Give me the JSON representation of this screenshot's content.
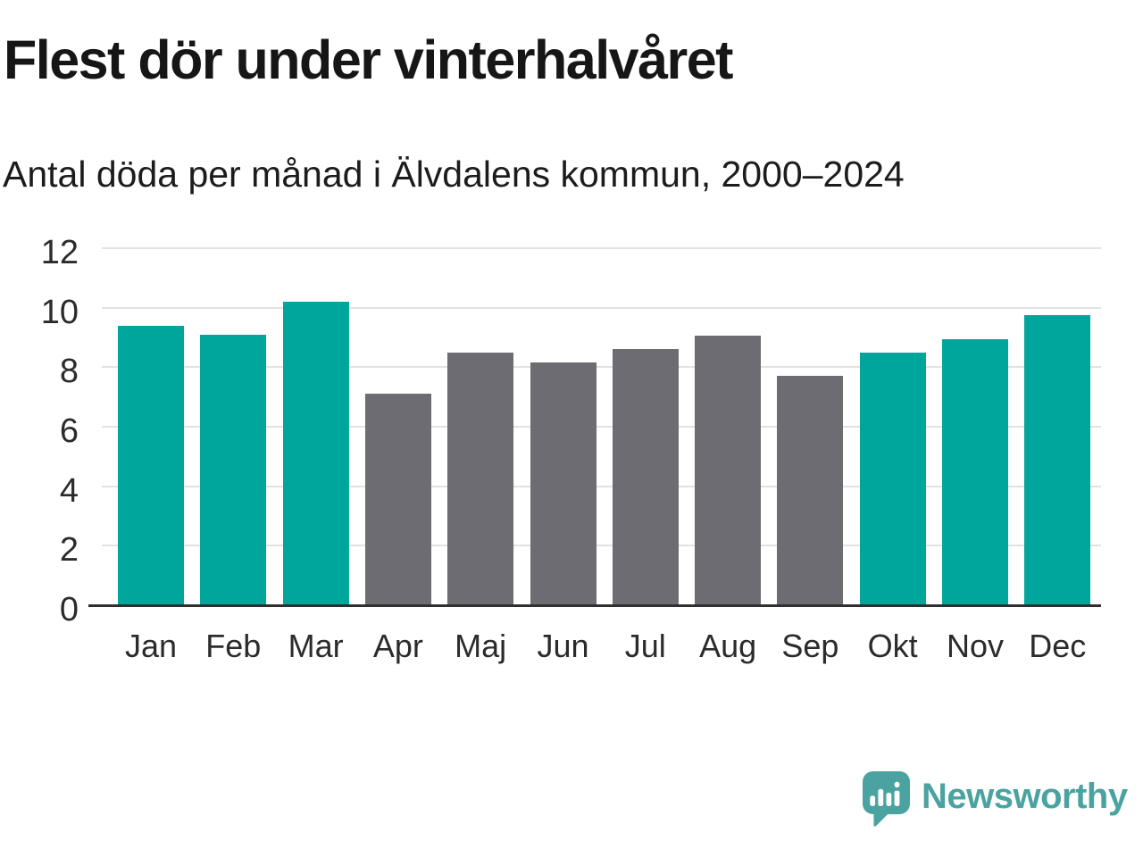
{
  "title": "Flest dör under vinterhalvåret",
  "subtitle": "Antal döda per månad i Älvdalens kommun, 2000–2024",
  "chart_data": {
    "type": "bar",
    "categories": [
      "Jan",
      "Feb",
      "Mar",
      "Apr",
      "Maj",
      "Jun",
      "Jul",
      "Aug",
      "Sep",
      "Okt",
      "Nov",
      "Dec"
    ],
    "values": [
      9.4,
      9.1,
      10.2,
      7.1,
      8.5,
      8.15,
      8.6,
      9.05,
      7.7,
      8.5,
      8.95,
      9.75
    ],
    "groups": [
      "winter",
      "winter",
      "winter",
      "summer",
      "summer",
      "summer",
      "summer",
      "summer",
      "summer",
      "winter",
      "winter",
      "winter"
    ],
    "group_colors": {
      "winter": "#00a69b",
      "summer": "#6c6c72"
    },
    "yticks": [
      0,
      2,
      4,
      6,
      8,
      10,
      12
    ],
    "ylim": [
      0,
      12
    ],
    "grid": "horizontal-only",
    "legend": "none",
    "xlabel": "",
    "ylabel": ""
  },
  "style_colors": {
    "gridline": "#e2e2e2",
    "axis_line": "#2f2f2f",
    "tick_text": "#2b2b2b"
  },
  "footer": {
    "brand": "Newsworthy",
    "brand_color": "#4ba3a1",
    "logo_icon": "bar-chart-speech-bubble-icon"
  }
}
